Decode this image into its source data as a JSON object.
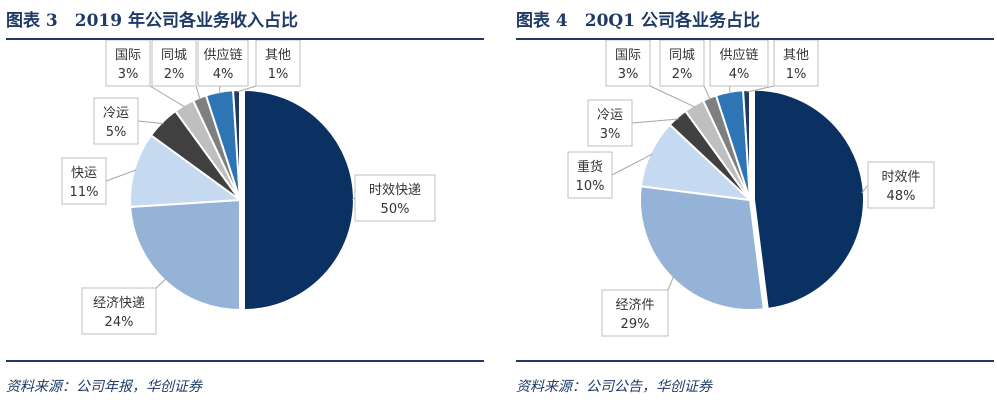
{
  "panels": [
    {
      "title": "图表 3　2019 年公司各业务收入占比",
      "source": "资料来源：公司年报，华创证券",
      "chart_data": {
        "type": "pie",
        "title": "图表 3　2019 年公司各业务收入占比",
        "slices": [
          {
            "label": "时效快递",
            "value": 50,
            "display": "50%",
            "color": "#0a3161"
          },
          {
            "label": "经济快递",
            "value": 24,
            "display": "24%",
            "color": "#95b3d7"
          },
          {
            "label": "快运",
            "value": 11,
            "display": "11%",
            "color": "#c5d9f1"
          },
          {
            "label": "冷运",
            "value": 5,
            "display": "5%",
            "color": "#404040"
          },
          {
            "label": "国际",
            "value": 3,
            "display": "3%",
            "color": "#bfbfbf"
          },
          {
            "label": "同城",
            "value": 2,
            "display": "2%",
            "color": "#7f7f7f"
          },
          {
            "label": "供应链",
            "value": 4,
            "display": "4%",
            "color": "#2e75b6"
          },
          {
            "label": "其他",
            "value": 1,
            "display": "1%",
            "color": "#1f3864"
          }
        ]
      }
    },
    {
      "title": "图表 4　20Q1 公司各业务占比",
      "source": "资料来源：公司公告，华创证券",
      "chart_data": {
        "type": "pie",
        "title": "图表 4　20Q1 公司各业务占比",
        "slices": [
          {
            "label": "时效件",
            "value": 48,
            "display": "48%",
            "color": "#0a3161"
          },
          {
            "label": "经济件",
            "value": 29,
            "display": "29%",
            "color": "#95b3d7"
          },
          {
            "label": "重货",
            "value": 10,
            "display": "10%",
            "color": "#c5d9f1"
          },
          {
            "label": "冷运",
            "value": 3,
            "display": "3%",
            "color": "#404040"
          },
          {
            "label": "国际",
            "value": 3,
            "display": "3%",
            "color": "#bfbfbf"
          },
          {
            "label": "同城",
            "value": 2,
            "display": "2%",
            "color": "#7f7f7f"
          },
          {
            "label": "供应链",
            "value": 4,
            "display": "4%",
            "color": "#2e75b6"
          },
          {
            "label": "其他",
            "value": 1,
            "display": "1%",
            "color": "#1f3864"
          }
        ]
      }
    }
  ]
}
